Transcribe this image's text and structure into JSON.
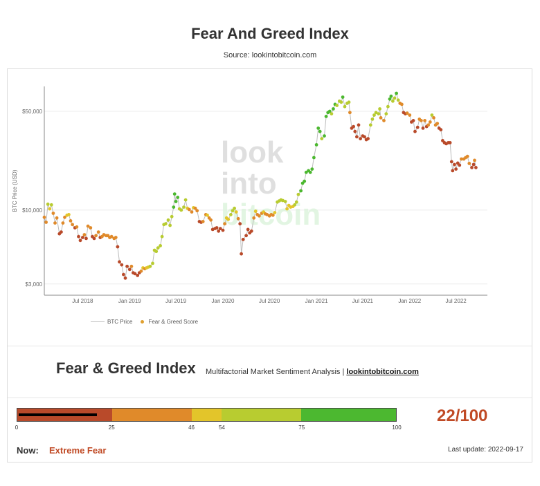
{
  "header": {
    "title": "Fear And Greed Index",
    "subtitle": "Source: lookintobitcoin.com"
  },
  "watermark": [
    "look",
    "into",
    "bitcoin"
  ],
  "chart_data": {
    "type": "scatter",
    "ylabel": "BTC Price (USD)",
    "yscale": "log",
    "ylim": [
      2500,
      75000
    ],
    "xlim": [
      "2018-02-01",
      "2022-11-01"
    ],
    "grid": true,
    "legend_position": "bottom",
    "yticks": [
      {
        "value": 3000,
        "label": "$3,000"
      },
      {
        "value": 10000,
        "label": "$10,000"
      },
      {
        "value": 50000,
        "label": "$50,000"
      }
    ],
    "xticks": [
      {
        "value": "2018-07-01",
        "label": "Jul 2018"
      },
      {
        "value": "2019-01-01",
        "label": "Jan 2019"
      },
      {
        "value": "2019-07-01",
        "label": "Jul 2019"
      },
      {
        "value": "2020-01-01",
        "label": "Jan 2020"
      },
      {
        "value": "2020-07-01",
        "label": "Jul 2020"
      },
      {
        "value": "2021-01-01",
        "label": "Jan 2021"
      },
      {
        "value": "2021-07-01",
        "label": "Jul 2021"
      },
      {
        "value": "2022-01-01",
        "label": "Jan 2022"
      },
      {
        "value": "2022-07-01",
        "label": "Jul 2022"
      }
    ],
    "series": [
      {
        "name": "BTC Price",
        "color": "#bbbbbb"
      },
      {
        "name": "Fear & Greed Score",
        "color": "#e0a030"
      }
    ],
    "points": [
      [
        "2018-02-01",
        8900,
        40
      ],
      [
        "2018-02-08",
        8200,
        30
      ],
      [
        "2018-02-15",
        11000,
        55
      ],
      [
        "2018-02-22",
        10200,
        50
      ],
      [
        "2018-03-01",
        10900,
        60
      ],
      [
        "2018-03-08",
        9500,
        42
      ],
      [
        "2018-03-15",
        8100,
        28
      ],
      [
        "2018-03-22",
        8800,
        35
      ],
      [
        "2018-04-01",
        6800,
        15
      ],
      [
        "2018-04-08",
        7000,
        18
      ],
      [
        "2018-04-15",
        8100,
        30
      ],
      [
        "2018-04-22",
        8900,
        45
      ],
      [
        "2018-05-01",
        9200,
        50
      ],
      [
        "2018-05-08",
        9300,
        48
      ],
      [
        "2018-05-15",
        8400,
        38
      ],
      [
        "2018-05-22",
        7900,
        30
      ],
      [
        "2018-06-01",
        7500,
        25
      ],
      [
        "2018-06-08",
        7600,
        28
      ],
      [
        "2018-06-15",
        6500,
        18
      ],
      [
        "2018-06-22",
        6100,
        15
      ],
      [
        "2018-07-01",
        6400,
        22
      ],
      [
        "2018-07-08",
        6700,
        30
      ],
      [
        "2018-07-15",
        6300,
        25
      ],
      [
        "2018-07-22",
        7700,
        45
      ],
      [
        "2018-08-01",
        7500,
        40
      ],
      [
        "2018-08-08",
        6500,
        22
      ],
      [
        "2018-08-15",
        6300,
        20
      ],
      [
        "2018-08-22",
        6600,
        28
      ],
      [
        "2018-09-01",
        7000,
        35
      ],
      [
        "2018-09-08",
        6400,
        25
      ],
      [
        "2018-09-15",
        6500,
        30
      ],
      [
        "2018-09-22",
        6700,
        32
      ],
      [
        "2018-10-01",
        6600,
        35
      ],
      [
        "2018-10-08",
        6600,
        38
      ],
      [
        "2018-10-15",
        6400,
        35
      ],
      [
        "2018-10-22",
        6500,
        40
      ],
      [
        "2018-11-01",
        6300,
        45
      ],
      [
        "2018-11-08",
        6400,
        42
      ],
      [
        "2018-11-15",
        5500,
        20
      ],
      [
        "2018-11-22",
        4300,
        10
      ],
      [
        "2018-12-01",
        4100,
        12
      ],
      [
        "2018-12-08",
        3500,
        8
      ],
      [
        "2018-12-15",
        3300,
        6
      ],
      [
        "2018-12-22",
        4000,
        22
      ],
      [
        "2019-01-01",
        3800,
        25
      ],
      [
        "2019-01-08",
        4000,
        28
      ],
      [
        "2019-01-15",
        3600,
        20
      ],
      [
        "2019-01-22",
        3550,
        18
      ],
      [
        "2019-02-01",
        3450,
        15
      ],
      [
        "2019-02-08",
        3600,
        25
      ],
      [
        "2019-02-15",
        3700,
        35
      ],
      [
        "2019-02-22",
        3900,
        48
      ],
      [
        "2019-03-01",
        3850,
        45
      ],
      [
        "2019-03-08",
        3900,
        50
      ],
      [
        "2019-03-15",
        3950,
        52
      ],
      [
        "2019-03-22",
        4000,
        55
      ],
      [
        "2019-04-01",
        4200,
        60
      ],
      [
        "2019-04-08",
        5200,
        65
      ],
      [
        "2019-04-15",
        5100,
        62
      ],
      [
        "2019-04-22",
        5400,
        65
      ],
      [
        "2019-05-01",
        5600,
        66
      ],
      [
        "2019-05-08",
        6500,
        70
      ],
      [
        "2019-05-15",
        7900,
        72
      ],
      [
        "2019-05-22",
        8000,
        70
      ],
      [
        "2019-06-01",
        8500,
        72
      ],
      [
        "2019-06-08",
        7800,
        65
      ],
      [
        "2019-06-15",
        9000,
        70
      ],
      [
        "2019-06-22",
        10500,
        78
      ],
      [
        "2019-06-26",
        13000,
        90
      ],
      [
        "2019-07-01",
        11500,
        80
      ],
      [
        "2019-07-08",
        12300,
        82
      ],
      [
        "2019-07-15",
        10200,
        60
      ],
      [
        "2019-07-22",
        10000,
        55
      ],
      [
        "2019-08-01",
        10500,
        58
      ],
      [
        "2019-08-08",
        11800,
        65
      ],
      [
        "2019-08-15",
        10300,
        48
      ],
      [
        "2019-08-22",
        10100,
        45
      ],
      [
        "2019-09-01",
        9700,
        40
      ],
      [
        "2019-09-08",
        10400,
        48
      ],
      [
        "2019-09-15",
        10300,
        45
      ],
      [
        "2019-09-22",
        9900,
        35
      ],
      [
        "2019-10-01",
        8300,
        20
      ],
      [
        "2019-10-08",
        8200,
        25
      ],
      [
        "2019-10-15",
        8300,
        28
      ],
      [
        "2019-10-26",
        9300,
        45
      ],
      [
        "2019-11-01",
        9200,
        50
      ],
      [
        "2019-11-08",
        8800,
        40
      ],
      [
        "2019-11-15",
        8500,
        35
      ],
      [
        "2019-11-22",
        7300,
        20
      ],
      [
        "2019-12-01",
        7400,
        22
      ],
      [
        "2019-12-08",
        7500,
        25
      ],
      [
        "2019-12-15",
        7100,
        18
      ],
      [
        "2019-12-22",
        7400,
        22
      ],
      [
        "2020-01-01",
        7200,
        25
      ],
      [
        "2020-01-08",
        8000,
        38
      ],
      [
        "2020-01-15",
        8800,
        50
      ],
      [
        "2020-01-22",
        8600,
        48
      ],
      [
        "2020-02-01",
        9300,
        55
      ],
      [
        "2020-02-08",
        9900,
        60
      ],
      [
        "2020-02-15",
        10300,
        62
      ],
      [
        "2020-02-22",
        9700,
        50
      ],
      [
        "2020-03-01",
        8700,
        38
      ],
      [
        "2020-03-08",
        8000,
        25
      ],
      [
        "2020-03-13",
        4900,
        8
      ],
      [
        "2020-03-20",
        6200,
        12
      ],
      [
        "2020-04-01",
        6600,
        15
      ],
      [
        "2020-04-08",
        7300,
        20
      ],
      [
        "2020-04-15",
        6900,
        18
      ],
      [
        "2020-04-22",
        7100,
        25
      ],
      [
        "2020-05-01",
        8800,
        40
      ],
      [
        "2020-05-08",
        9800,
        50
      ],
      [
        "2020-05-15",
        9300,
        42
      ],
      [
        "2020-05-22",
        9100,
        40
      ],
      [
        "2020-06-01",
        9500,
        45
      ],
      [
        "2020-06-08",
        9700,
        48
      ],
      [
        "2020-06-15",
        9400,
        42
      ],
      [
        "2020-06-22",
        9300,
        42
      ],
      [
        "2020-07-01",
        9100,
        40
      ],
      [
        "2020-07-08",
        9300,
        42
      ],
      [
        "2020-07-15",
        9200,
        44
      ],
      [
        "2020-07-22",
        9600,
        50
      ],
      [
        "2020-08-01",
        11400,
        70
      ],
      [
        "2020-08-08",
        11600,
        72
      ],
      [
        "2020-08-15",
        11800,
        75
      ],
      [
        "2020-08-22",
        11700,
        74
      ],
      [
        "2020-09-01",
        11500,
        72
      ],
      [
        "2020-09-08",
        10200,
        48
      ],
      [
        "2020-09-15",
        10800,
        50
      ],
      [
        "2020-09-22",
        10500,
        48
      ],
      [
        "2020-10-01",
        10600,
        50
      ],
      [
        "2020-10-08",
        10900,
        55
      ],
      [
        "2020-10-15",
        11400,
        62
      ],
      [
        "2020-10-22",
        12900,
        72
      ],
      [
        "2020-11-01",
        13700,
        78
      ],
      [
        "2020-11-08",
        15500,
        85
      ],
      [
        "2020-11-15",
        16000,
        88
      ],
      [
        "2020-11-22",
        18500,
        90
      ],
      [
        "2020-12-01",
        19000,
        90
      ],
      [
        "2020-12-08",
        18500,
        88
      ],
      [
        "2020-12-15",
        19500,
        90
      ],
      [
        "2020-12-22",
        23500,
        92
      ],
      [
        "2021-01-01",
        29000,
        93
      ],
      [
        "2021-01-08",
        38000,
        94
      ],
      [
        "2021-01-15",
        36000,
        85
      ],
      [
        "2021-01-22",
        32000,
        75
      ],
      [
        "2021-02-01",
        33500,
        78
      ],
      [
        "2021-02-08",
        46000,
        90
      ],
      [
        "2021-02-15",
        49000,
        92
      ],
      [
        "2021-02-22",
        50000,
        80
      ],
      [
        "2021-03-01",
        48000,
        75
      ],
      [
        "2021-03-08",
        52000,
        80
      ],
      [
        "2021-03-15",
        56000,
        78
      ],
      [
        "2021-03-22",
        55000,
        72
      ],
      [
        "2021-04-01",
        59000,
        75
      ],
      [
        "2021-04-08",
        58000,
        72
      ],
      [
        "2021-04-14",
        63000,
        78
      ],
      [
        "2021-04-22",
        54000,
        60
      ],
      [
        "2021-05-01",
        57000,
        65
      ],
      [
        "2021-05-08",
        58000,
        68
      ],
      [
        "2021-05-12",
        49000,
        40
      ],
      [
        "2021-05-19",
        38000,
        15
      ],
      [
        "2021-05-26",
        39000,
        18
      ],
      [
        "2021-06-01",
        36000,
        15
      ],
      [
        "2021-06-08",
        33000,
        12
      ],
      [
        "2021-06-15",
        40000,
        25
      ],
      [
        "2021-06-22",
        32000,
        10
      ],
      [
        "2021-07-01",
        33500,
        20
      ],
      [
        "2021-07-08",
        33000,
        22
      ],
      [
        "2021-07-15",
        31500,
        18
      ],
      [
        "2021-07-22",
        32000,
        25
      ],
      [
        "2021-08-01",
        40000,
        55
      ],
      [
        "2021-08-08",
        44000,
        65
      ],
      [
        "2021-08-15",
        47000,
        70
      ],
      [
        "2021-08-22",
        49000,
        72
      ],
      [
        "2021-09-01",
        48000,
        70
      ],
      [
        "2021-09-06",
        52000,
        75
      ],
      [
        "2021-09-10",
        45000,
        45
      ],
      [
        "2021-09-22",
        43000,
        30
      ],
      [
        "2021-10-01",
        48000,
        55
      ],
      [
        "2021-10-08",
        54000,
        75
      ],
      [
        "2021-10-15",
        61000,
        78
      ],
      [
        "2021-10-20",
        64000,
        80
      ],
      [
        "2021-10-27",
        59000,
        70
      ],
      [
        "2021-11-03",
        62000,
        72
      ],
      [
        "2021-11-10",
        67000,
        78
      ],
      [
        "2021-11-17",
        60000,
        55
      ],
      [
        "2021-11-24",
        57000,
        45
      ],
      [
        "2021-12-01",
        56000,
        40
      ],
      [
        "2021-12-08",
        49000,
        25
      ],
      [
        "2021-12-15",
        48000,
        25
      ],
      [
        "2021-12-22",
        48500,
        30
      ],
      [
        "2022-01-01",
        47000,
        30
      ],
      [
        "2022-01-08",
        42000,
        20
      ],
      [
        "2022-01-15",
        43000,
        22
      ],
      [
        "2022-01-22",
        36000,
        12
      ],
      [
        "2022-02-01",
        38500,
        25
      ],
      [
        "2022-02-08",
        44000,
        45
      ],
      [
        "2022-02-15",
        43000,
        40
      ],
      [
        "2022-02-22",
        38000,
        25
      ],
      [
        "2022-03-01",
        43000,
        35
      ],
      [
        "2022-03-08",
        39000,
        25
      ],
      [
        "2022-03-15",
        40000,
        30
      ],
      [
        "2022-03-22",
        42000,
        40
      ],
      [
        "2022-03-29",
        47000,
        55
      ],
      [
        "2022-04-05",
        45000,
        45
      ],
      [
        "2022-04-12",
        40000,
        30
      ],
      [
        "2022-04-19",
        41000,
        30
      ],
      [
        "2022-04-26",
        38000,
        25
      ],
      [
        "2022-05-03",
        37000,
        22
      ],
      [
        "2022-05-10",
        31000,
        12
      ],
      [
        "2022-05-17",
        30000,
        10
      ],
      [
        "2022-05-24",
        29500,
        12
      ],
      [
        "2022-06-01",
        30000,
        12
      ],
      [
        "2022-06-08",
        30000,
        15
      ],
      [
        "2022-06-14",
        22000,
        8
      ],
      [
        "2022-06-18",
        19000,
        6
      ],
      [
        "2022-06-25",
        21000,
        10
      ],
      [
        "2022-07-01",
        19500,
        12
      ],
      [
        "2022-07-08",
        21500,
        18
      ],
      [
        "2022-07-15",
        20800,
        20
      ],
      [
        "2022-07-22",
        23000,
        30
      ],
      [
        "2022-08-01",
        23000,
        35
      ],
      [
        "2022-08-08",
        23500,
        38
      ],
      [
        "2022-08-15",
        24000,
        40
      ],
      [
        "2022-08-22",
        21400,
        28
      ],
      [
        "2022-09-01",
        20000,
        22
      ],
      [
        "2022-09-08",
        21000,
        25
      ],
      [
        "2022-09-12",
        22500,
        32
      ],
      [
        "2022-09-17",
        20000,
        22
      ]
    ]
  },
  "panel": {
    "heading": "Fear & Greed Index",
    "description": "Multifactorial Market Sentiment Analysis |",
    "link": "lookintobitcoin.com"
  },
  "gauge": {
    "score": 22,
    "score_text": "22/100",
    "segments": [
      {
        "from": 0,
        "to": 25,
        "color": "#b94a2a"
      },
      {
        "from": 25,
        "to": 46,
        "color": "#e08a2a"
      },
      {
        "from": 46,
        "to": 54,
        "color": "#e3c52a"
      },
      {
        "from": 54,
        "to": 75,
        "color": "#b8cc30"
      },
      {
        "from": 75,
        "to": 100,
        "color": "#4cb830"
      }
    ],
    "ticks": [
      "0",
      "25",
      "46",
      "54",
      "75",
      "100"
    ]
  },
  "status": {
    "now_label": "Now:",
    "now_value": "Extreme Fear",
    "last_update": "Last update: 2022-09-17"
  }
}
